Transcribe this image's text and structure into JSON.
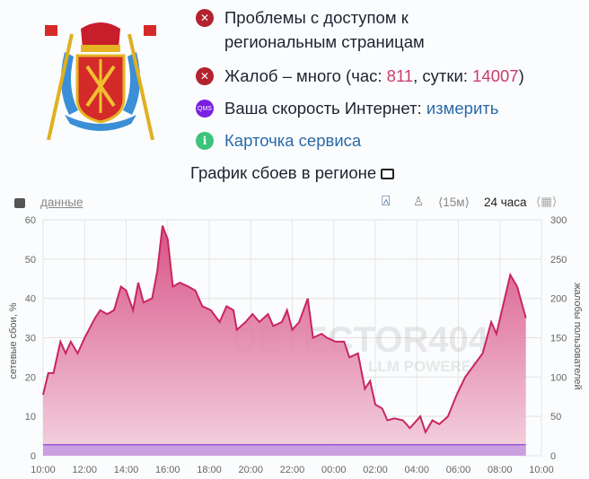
{
  "status": {
    "access_problem": "Проблемы с доступом к",
    "access_problem_line2": "региональным страницам",
    "complaints_prefix": "Жалоб – много (час: ",
    "complaints_hour": "811",
    "complaints_mid": ", сутки: ",
    "complaints_day": "14007",
    "complaints_suffix": ")",
    "speed_label": "Ваша скорость Интернет: ",
    "speed_link": "измерить",
    "qms_badge": "QMS",
    "service_card": "Карточка сервиса"
  },
  "chart_title": "График сбоев в регионе",
  "toolbar": {
    "data_link": "данные",
    "interval": "⟨15м⟩",
    "period": "24 часа"
  },
  "watermark": {
    "line1": "DETECTOR404",
    "line2": "LLM POWERED"
  },
  "colors": {
    "failures": "#c8265f",
    "complaints": "#9b59d0",
    "error": "#b3222d",
    "link": "#2a6aa8"
  },
  "chart_data": {
    "type": "area",
    "ylabel": "сетевые сбои, %",
    "y2label": "жалобы пользователей",
    "ylim": [
      0,
      60
    ],
    "y2lim": [
      0,
      300
    ],
    "yticks": [
      0,
      10,
      20,
      30,
      40,
      50,
      60
    ],
    "y2ticks": [
      0,
      50,
      100,
      150,
      200,
      250,
      300
    ],
    "xticks": [
      "10:00",
      "12:00",
      "14:00",
      "16:00",
      "18:00",
      "20:00",
      "22:00",
      "00:00",
      "02:00",
      "04:00",
      "06:00",
      "08:00",
      "10:00"
    ],
    "grid": true,
    "series": [
      {
        "axis": "left",
        "x": [
          "10:00",
          "10:15",
          "10:30",
          "10:50",
          "11:05",
          "11:20",
          "11:40",
          "12:00",
          "12:30",
          "12:45",
          "13:05",
          "13:25",
          "13:45",
          "14:00",
          "14:20",
          "14:35",
          "14:50",
          "15:15",
          "15:30",
          "15:45",
          "16:00",
          "16:15",
          "16:35",
          "17:00",
          "17:20",
          "17:40",
          "18:05",
          "18:30",
          "18:50",
          "19:10",
          "19:20",
          "19:45",
          "20:05",
          "20:25",
          "20:50",
          "21:05",
          "21:30",
          "21:45",
          "22:00",
          "22:20",
          "22:45",
          "23:00",
          "23:25",
          "23:40",
          "00:05",
          "00:30",
          "00:45",
          "01:10",
          "01:30",
          "01:45",
          "02:00",
          "02:20",
          "02:35",
          "02:55",
          "03:20",
          "03:40",
          "04:00",
          "04:10",
          "04:25",
          "04:45",
          "05:05",
          "05:30",
          "05:55",
          "06:20",
          "06:45",
          "07:10",
          "07:35",
          "07:50",
          "08:10",
          "08:30",
          "08:50",
          "09:15"
        ],
        "values": [
          15.5,
          21,
          21,
          29,
          26,
          29,
          26,
          30,
          35,
          37,
          36,
          37,
          43,
          42,
          37,
          44,
          39,
          40,
          47,
          58.5,
          55,
          43,
          44,
          43,
          42,
          38,
          37,
          34,
          38,
          37,
          32,
          34,
          36,
          34,
          36,
          33,
          34,
          37,
          32,
          34,
          40,
          30,
          31,
          30,
          29,
          29,
          25,
          26,
          17,
          19,
          13,
          12,
          9,
          9.5,
          9,
          7,
          9,
          10,
          6,
          9,
          8,
          10,
          15.5,
          20,
          23,
          26,
          34,
          31,
          38.5,
          46,
          43,
          35
        ]
      },
      {
        "axis": "right",
        "x": [
          "10:00",
          "16:00",
          "22:00",
          "04:00",
          "09:15"
        ],
        "values": [
          14,
          14,
          14,
          14,
          14
        ]
      }
    ]
  }
}
